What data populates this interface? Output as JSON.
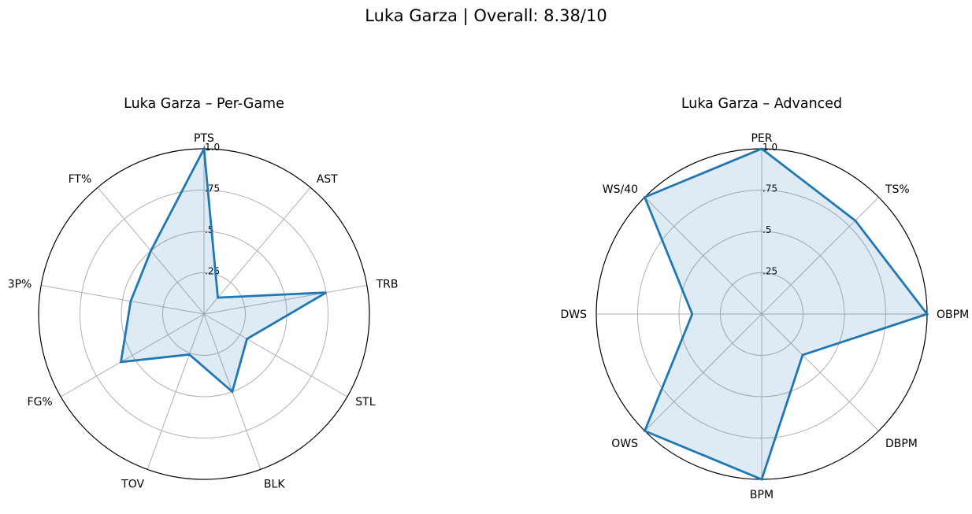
{
  "title": "Luka Garza | Overall: 8.38/10",
  "colors": {
    "line": "#1f77b4",
    "fill": "#1f77b4",
    "grid": "#b0b0b0",
    "frame": "#000000"
  },
  "chart_data": [
    {
      "type": "radar",
      "title": "Luka Garza – Per-Game",
      "categories": [
        "PTS",
        "AST",
        "TRB",
        "STL",
        "BLK",
        "TOV",
        "FG%",
        "3P%",
        "FT%"
      ],
      "values": [
        1.0,
        0.13,
        0.75,
        0.3,
        0.5,
        0.26,
        0.58,
        0.45,
        0.5
      ],
      "rlim": [
        0,
        1.0
      ],
      "rticks": [
        0.25,
        0.5,
        0.75,
        1.0
      ],
      "rtick_labels": [
        ".25",
        ".5",
        ".75",
        "1.0"
      ],
      "grid": true
    },
    {
      "type": "radar",
      "title": "Luka Garza – Advanced",
      "categories": [
        "PER",
        "TS%",
        "OBPM",
        "DBPM",
        "BPM",
        "OWS",
        "DWS",
        "WS/40"
      ],
      "values": [
        1.0,
        0.8,
        1.0,
        0.35,
        1.0,
        1.0,
        0.42,
        1.0
      ],
      "rlim": [
        0,
        1.0
      ],
      "rticks": [
        0.25,
        0.5,
        0.75,
        1.0
      ],
      "rtick_labels": [
        ".25",
        ".5",
        ".75",
        "1.0"
      ],
      "grid": true
    }
  ]
}
